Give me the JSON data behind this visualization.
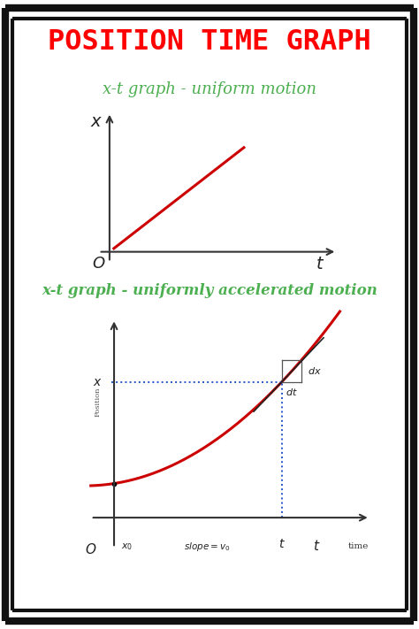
{
  "title": "POSITION TIME GRAPH",
  "title_color": "#ff0000",
  "subtitle1": "x-t graph - uniform motion",
  "subtitle2": "x-t graph - uniformly accelerated motion",
  "subtitle_color": "#4caf50",
  "bg_color": "#ffffff",
  "border_color": "#111111",
  "graph1_line_color": "#cc0000",
  "graph2_line_color": "#cc0000",
  "axis_color": "#333333",
  "dashed_color": "#2255cc",
  "tangent_color": "#222222",
  "annot_color": "#333333",
  "fig_width": 4.74,
  "fig_height": 7.11,
  "dpi": 100
}
